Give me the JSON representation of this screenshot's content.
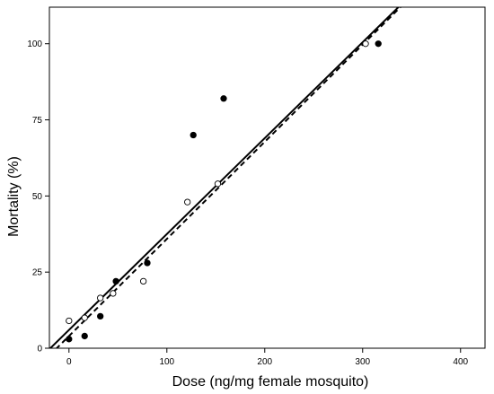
{
  "chart_data": {
    "type": "scatter",
    "xlabel": "Dose (ng/mg female mosquito)",
    "ylabel": "Mortality (%)",
    "xlim": [
      -20,
      425
    ],
    "ylim": [
      0,
      112
    ],
    "xticks": [
      0,
      100,
      200,
      300,
      400
    ],
    "yticks": [
      0,
      25,
      50,
      75,
      100
    ],
    "grid": false,
    "series": [
      {
        "marker": "filled-circle",
        "points": [
          [
            0,
            3
          ],
          [
            16,
            4
          ],
          [
            32,
            10.5
          ],
          [
            48,
            22
          ],
          [
            80,
            28
          ],
          [
            127,
            70
          ],
          [
            158,
            82
          ],
          [
            316,
            100
          ]
        ],
        "fit": {
          "style": "solid",
          "intercept": 6,
          "slope": 0.315
        }
      },
      {
        "marker": "open-circle",
        "points": [
          [
            0,
            9
          ],
          [
            16,
            10
          ],
          [
            32,
            16.5
          ],
          [
            45,
            18
          ],
          [
            76,
            22
          ],
          [
            121,
            48
          ],
          [
            152,
            54
          ],
          [
            303,
            100
          ]
        ],
        "fit": {
          "style": "dashed",
          "intercept": 4,
          "slope": 0.319
        }
      }
    ]
  }
}
